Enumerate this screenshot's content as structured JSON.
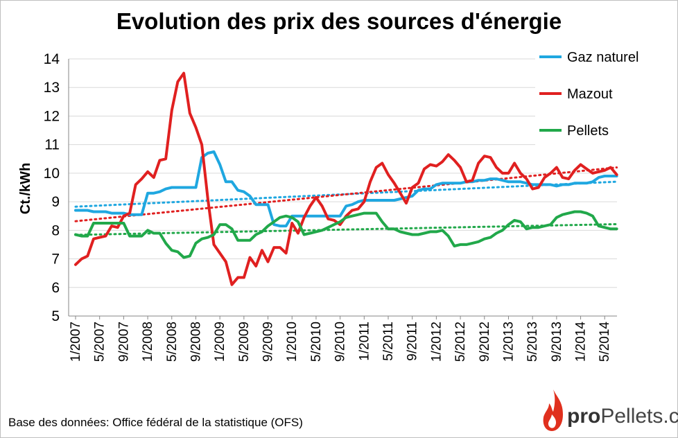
{
  "chart_data": {
    "type": "line",
    "title": "Evolution des prix des sources d'énergie",
    "xlabel": "",
    "ylabel": "Ct./kWh",
    "ylim": [
      5,
      14
    ],
    "yticks": [
      5,
      6,
      7,
      8,
      9,
      10,
      11,
      12,
      13,
      14
    ],
    "grid": true,
    "legend_position": "right",
    "trendlines": "linear, dotted, one per series",
    "x": [
      "1/2007",
      "2/2007",
      "3/2007",
      "4/2007",
      "5/2007",
      "6/2007",
      "7/2007",
      "8/2007",
      "9/2007",
      "10/2007",
      "11/2007",
      "12/2007",
      "1/2008",
      "2/2008",
      "3/2008",
      "4/2008",
      "5/2008",
      "6/2008",
      "7/2008",
      "8/2008",
      "9/2008",
      "10/2008",
      "11/2008",
      "12/2008",
      "1/2009",
      "2/2009",
      "3/2009",
      "4/2009",
      "5/2009",
      "6/2009",
      "7/2009",
      "8/2009",
      "9/2009",
      "10/2009",
      "11/2009",
      "12/2009",
      "1/2010",
      "2/2010",
      "3/2010",
      "4/2010",
      "5/2010",
      "6/2010",
      "7/2010",
      "8/2010",
      "9/2010",
      "10/2010",
      "11/2010",
      "12/2010",
      "1/2011",
      "2/2011",
      "3/2011",
      "4/2011",
      "5/2011",
      "6/2011",
      "7/2011",
      "8/2011",
      "9/2011",
      "10/2011",
      "11/2011",
      "12/2011",
      "1/2012",
      "2/2012",
      "3/2012",
      "4/2012",
      "5/2012",
      "6/2012",
      "7/2012",
      "8/2012",
      "9/2012",
      "10/2012",
      "11/2012",
      "12/2012",
      "1/2013",
      "2/2013",
      "3/2013",
      "4/2013",
      "5/2013",
      "6/2013",
      "7/2013",
      "8/2013",
      "9/2013",
      "10/2013",
      "11/2013",
      "12/2013",
      "1/2014",
      "2/2014",
      "3/2014",
      "4/2014",
      "5/2014",
      "6/2014",
      "7/2014"
    ],
    "xticks": [
      "1/2007",
      "5/2007",
      "9/2007",
      "1/2008",
      "5/2008",
      "9/2008",
      "1/2009",
      "5/2009",
      "9/2009",
      "1/2010",
      "5/2010",
      "9/2010",
      "1/2011",
      "5/2011",
      "9/2011",
      "1/2012",
      "5/2012",
      "9/2012",
      "1/2013",
      "5/2013",
      "9/2013",
      "1/2014",
      "5/2014"
    ],
    "series": [
      {
        "name": "Gaz naturel",
        "color": "#1fa7e0",
        "values": [
          8.7,
          8.7,
          8.7,
          8.65,
          8.65,
          8.65,
          8.6,
          8.6,
          8.6,
          8.55,
          8.55,
          8.55,
          9.3,
          9.3,
          9.35,
          9.45,
          9.5,
          9.5,
          9.5,
          9.5,
          9.5,
          10.55,
          10.7,
          10.75,
          10.3,
          9.7,
          9.7,
          9.4,
          9.35,
          9.2,
          8.9,
          8.9,
          8.9,
          8.2,
          8.15,
          8.15,
          8.5,
          8.5,
          8.5,
          8.5,
          8.5,
          8.5,
          8.5,
          8.5,
          8.5,
          8.85,
          8.9,
          9.0,
          9.05,
          9.05,
          9.05,
          9.05,
          9.05,
          9.05,
          9.1,
          9.15,
          9.2,
          9.4,
          9.45,
          9.45,
          9.6,
          9.65,
          9.65,
          9.65,
          9.65,
          9.7,
          9.7,
          9.75,
          9.75,
          9.8,
          9.8,
          9.75,
          9.7,
          9.7,
          9.7,
          9.65,
          9.6,
          9.6,
          9.6,
          9.6,
          9.55,
          9.6,
          9.6,
          9.65,
          9.65,
          9.65,
          9.7,
          9.85,
          9.9,
          9.9,
          9.9
        ]
      },
      {
        "name": "Mazout",
        "color": "#e02020",
        "values": [
          6.8,
          7.0,
          7.1,
          7.7,
          7.75,
          7.8,
          8.15,
          8.1,
          8.5,
          8.6,
          9.6,
          9.8,
          10.05,
          9.85,
          10.45,
          10.5,
          12.2,
          13.2,
          13.5,
          12.1,
          11.6,
          11.0,
          9.1,
          7.5,
          7.2,
          6.9,
          6.1,
          6.35,
          6.35,
          7.05,
          6.75,
          7.3,
          6.9,
          7.4,
          7.4,
          7.2,
          8.25,
          7.9,
          8.45,
          8.85,
          9.15,
          8.85,
          8.4,
          8.35,
          8.2,
          8.5,
          8.7,
          8.75,
          9.0,
          9.7,
          10.2,
          10.35,
          9.95,
          9.65,
          9.3,
          8.95,
          9.5,
          9.65,
          10.15,
          10.3,
          10.25,
          10.4,
          10.65,
          10.45,
          10.2,
          9.7,
          9.75,
          10.35,
          10.6,
          10.55,
          10.2,
          10.0,
          10.0,
          10.35,
          10.0,
          9.8,
          9.45,
          9.5,
          9.85,
          10.0,
          10.2,
          9.85,
          9.8,
          10.1,
          10.3,
          10.15,
          10.0,
          10.05,
          10.1,
          10.2,
          9.95
        ]
      },
      {
        "name": "Pellets",
        "color": "#21a84a",
        "values": [
          7.85,
          7.8,
          7.8,
          8.25,
          8.25,
          8.25,
          8.25,
          8.25,
          8.25,
          7.8,
          7.8,
          7.8,
          8.0,
          7.9,
          7.9,
          7.55,
          7.3,
          7.25,
          7.05,
          7.1,
          7.55,
          7.7,
          7.75,
          7.85,
          8.2,
          8.2,
          8.05,
          7.65,
          7.65,
          7.65,
          7.85,
          7.95,
          8.15,
          8.3,
          8.45,
          8.5,
          8.45,
          8.3,
          7.85,
          7.9,
          7.95,
          8.0,
          8.1,
          8.2,
          8.3,
          8.45,
          8.5,
          8.55,
          8.6,
          8.6,
          8.6,
          8.3,
          8.05,
          8.05,
          7.95,
          7.9,
          7.85,
          7.85,
          7.9,
          7.95,
          7.95,
          8.0,
          7.8,
          7.45,
          7.5,
          7.5,
          7.55,
          7.6,
          7.7,
          7.75,
          7.9,
          8.0,
          8.2,
          8.35,
          8.3,
          8.05,
          8.1,
          8.1,
          8.15,
          8.2,
          8.45,
          8.55,
          8.6,
          8.65,
          8.65,
          8.6,
          8.5,
          8.15,
          8.1,
          8.05,
          8.05
        ]
      }
    ]
  },
  "source_note": "Base des données: Office fédéral de la statistique (OFS)",
  "logo": {
    "bold": "pro",
    "rest": "Pellets.ch",
    "flame_color": "#e0301e"
  }
}
